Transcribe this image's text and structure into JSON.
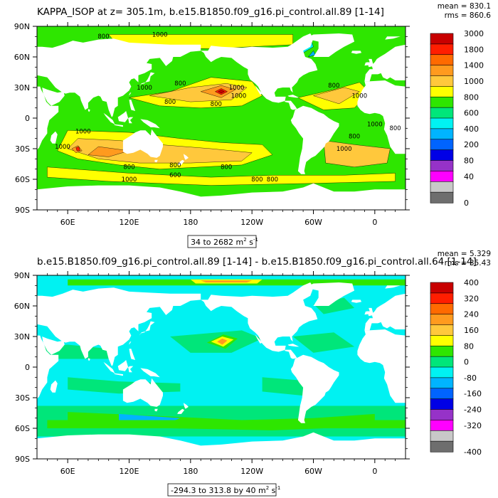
{
  "chart_data": [
    {
      "type": "heatmap",
      "title": "KAPPA_ISOP at z= 305.1m, b.e15.B1850.f09_g16.pi_control.all.89 [1-14]",
      "stats": {
        "mean": "mean = 830.1",
        "rms": "rms = 860.6"
      },
      "x_ticks": [
        "60E",
        "120E",
        "180",
        "120W",
        "60W",
        "0"
      ],
      "y_ticks": [
        "90N",
        "60N",
        "30N",
        "0",
        "30S",
        "60S",
        "90S"
      ],
      "x_range": [
        30,
        390
      ],
      "y_range": [
        -90,
        90
      ],
      "range_label": {
        "text": "34 to 2682 m",
        "sup": "2",
        "unit": " s",
        "sup2": "-1"
      },
      "colorbar_levels": [
        "3000",
        "1800",
        "1400",
        "1000",
        "800",
        "600",
        "400",
        "200",
        "80",
        "40",
        "0"
      ],
      "colorbar_colors": [
        "#c80000",
        "#ff1e00",
        "#ff6a00",
        "#ff9a1e",
        "#ffc83c",
        "#ffff00",
        "#2ee600",
        "#00e67a",
        "#00f2f2",
        "#00b4ff",
        "#0064ff",
        "#0000e6",
        "#9632c8",
        "#ff00ff",
        "#c8c8c8",
        "#6e6e6e"
      ],
      "contour_labels": [
        "800",
        "1000",
        "1000",
        "800",
        "800",
        "800",
        "1000",
        "1000",
        "1000",
        "1000",
        "800",
        "800",
        "600",
        "1000",
        "800",
        "800",
        "800",
        "1000",
        "800",
        "1000",
        "800",
        "800",
        "1000"
      ]
    },
    {
      "type": "heatmap",
      "title": "b.e15.B1850.f09_g16.pi_control.all.89 [1-14] - b.e15.B1850.f09_g16.pi_control.all.64 [1-14]",
      "stats": {
        "mean": "mean = 5.329",
        "rms": "rms = 35.43"
      },
      "x_ticks": [
        "60E",
        "120E",
        "180",
        "120W",
        "60W",
        "0"
      ],
      "y_ticks": [
        "90N",
        "60N",
        "30N",
        "0",
        "30S",
        "60S",
        "90S"
      ],
      "x_range": [
        30,
        390
      ],
      "y_range": [
        -90,
        90
      ],
      "range_label": {
        "text": "-294.3 to 313.8 by 40 m",
        "sup": "2",
        "unit": " s",
        "sup2": "-1"
      },
      "colorbar_levels": [
        "400",
        "320",
        "240",
        "160",
        "80",
        "0",
        "-80",
        "-160",
        "-240",
        "-320",
        "-400"
      ],
      "colorbar_colors": [
        "#c80000",
        "#ff1e00",
        "#ff6a00",
        "#ff9a1e",
        "#ffc83c",
        "#ffff00",
        "#2ee600",
        "#00e67a",
        "#00f2f2",
        "#00b4ff",
        "#0064ff",
        "#0000e6",
        "#9632c8",
        "#ff00ff",
        "#c8c8c8",
        "#6e6e6e"
      ]
    }
  ],
  "colors": {
    "land": "#ffffff",
    "ocean_low": "#00e67a",
    "ocean_mid": "#ffc83c",
    "ocean_high": "#ff9a1e",
    "diff_base": "#00f2f2",
    "diff_pos": "#2ee600"
  }
}
